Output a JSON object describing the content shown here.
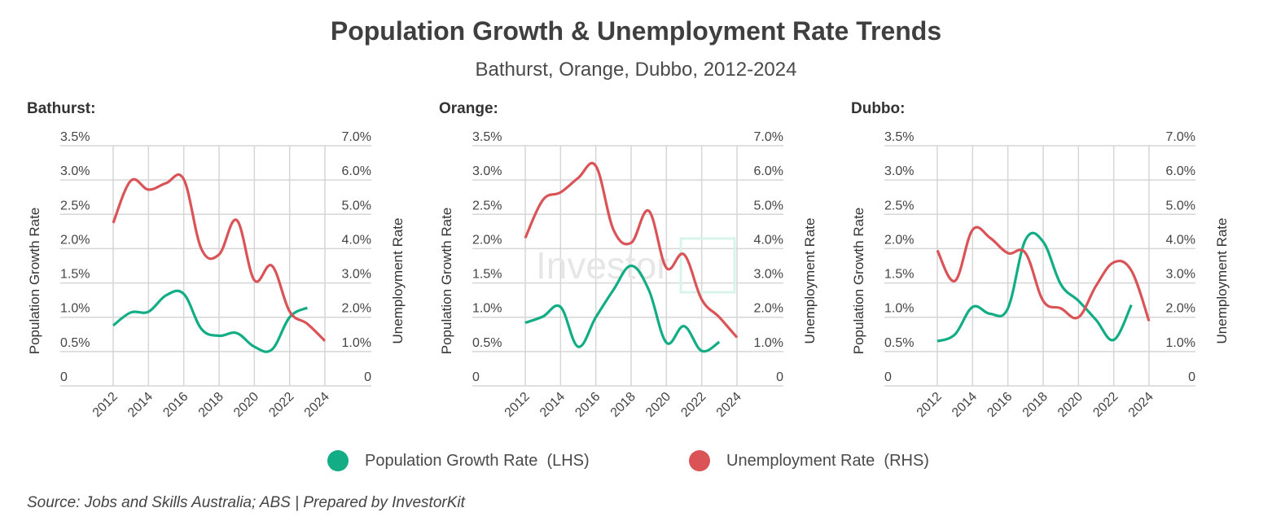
{
  "title": "Population Growth & Unemployment Rate Trends",
  "subtitle": "Bathurst, Orange, Dubbo, 2012-2024",
  "watermark": "InvestorKit",
  "legend": [
    {
      "label": "Population Growth Rate  (LHS)",
      "color": "#13ad85"
    },
    {
      "label": "Unemployment Rate  (RHS)",
      "color": "#d95357"
    }
  ],
  "source": "Source: Jobs and Skills Australia; ABS | Prepared by InvestorKit",
  "chart_data": [
    {
      "type": "line",
      "title": "Bathurst:",
      "ylabel": "Population Growth Rate",
      "y2label": "Unemployment Rate",
      "ylim": [
        0,
        3.5
      ],
      "y2lim": [
        0,
        7.0
      ],
      "yticks": [
        "0",
        "0.5%",
        "1.0%",
        "1.5%",
        "2.0%",
        "2.5%",
        "3.0%",
        "3.5%"
      ],
      "y2ticks": [
        "0",
        "1.0%",
        "2.0%",
        "3.0%",
        "4.0%",
        "5.0%",
        "6.0%",
        "7.0%"
      ],
      "xticks": [
        "2012",
        "2014",
        "2016",
        "2018",
        "2020",
        "2022",
        "2024"
      ],
      "grid": true,
      "series": [
        {
          "name": "Population Growth Rate  (LHS)",
          "axis": "left",
          "x": [
            2012,
            2013,
            2014,
            2015,
            2016,
            2017,
            2018,
            2019,
            2020,
            2021,
            2022,
            2023
          ],
          "values": [
            0.88,
            1.07,
            1.08,
            1.32,
            1.34,
            0.83,
            0.73,
            0.77,
            0.57,
            0.53,
            1.0,
            1.14
          ]
        },
        {
          "name": "Unemployment Rate  (RHS)",
          "axis": "right",
          "x": [
            2012,
            2013,
            2014,
            2015,
            2016,
            2017,
            2018,
            2019,
            2020,
            2021,
            2022,
            2023,
            2024
          ],
          "values": [
            4.75,
            5.98,
            5.72,
            5.91,
            6.02,
            3.99,
            3.83,
            4.83,
            3.08,
            3.5,
            2.17,
            1.81,
            1.31
          ]
        }
      ]
    },
    {
      "type": "line",
      "title": "Orange:",
      "ylabel": "Population Growth Rate",
      "y2label": "Unemployment Rate",
      "ylim": [
        0,
        3.5
      ],
      "y2lim": [
        0,
        7.0
      ],
      "yticks": [
        "0",
        "0.5%",
        "1.0%",
        "1.5%",
        "2.0%",
        "2.5%",
        "3.0%",
        "3.5%"
      ],
      "y2ticks": [
        "0",
        "1.0%",
        "2.0%",
        "3.0%",
        "4.0%",
        "5.0%",
        "6.0%",
        "7.0%"
      ],
      "xticks": [
        "2012",
        "2014",
        "2016",
        "2018",
        "2020",
        "2022",
        "2024"
      ],
      "grid": true,
      "series": [
        {
          "name": "Population Growth Rate  (LHS)",
          "axis": "left",
          "x": [
            2012,
            2013,
            2014,
            2015,
            2016,
            2017,
            2018,
            2019,
            2020,
            2021,
            2022,
            2023
          ],
          "values": [
            0.92,
            1.01,
            1.15,
            0.57,
            1.0,
            1.4,
            1.75,
            1.4,
            0.63,
            0.87,
            0.51,
            0.64
          ]
        },
        {
          "name": "Unemployment Rate  (RHS)",
          "axis": "right",
          "x": [
            2012,
            2013,
            2014,
            2015,
            2016,
            2017,
            2018,
            2019,
            2020,
            2021,
            2022,
            2023,
            2024
          ],
          "values": [
            4.31,
            5.42,
            5.64,
            6.06,
            6.41,
            4.55,
            4.17,
            5.1,
            3.44,
            3.83,
            2.52,
            2.0,
            1.41
          ]
        }
      ]
    },
    {
      "type": "line",
      "title": "Dubbo:",
      "ylabel": "Population Growth Rate",
      "y2label": "Unemployment Rate",
      "ylim": [
        0,
        3.5
      ],
      "y2lim": [
        0,
        7.0
      ],
      "yticks": [
        "0",
        "0.5%",
        "1.0%",
        "1.5%",
        "2.0%",
        "2.5%",
        "3.0%",
        "3.5%"
      ],
      "y2ticks": [
        "0",
        "1.0%",
        "2.0%",
        "3.0%",
        "4.0%",
        "5.0%",
        "6.0%",
        "7.0%"
      ],
      "xticks": [
        "2012",
        "2014",
        "2016",
        "2018",
        "2020",
        "2022",
        "2024"
      ],
      "grid": true,
      "series": [
        {
          "name": "Population Growth Rate  (LHS)",
          "axis": "left",
          "x": [
            2012,
            2013,
            2014,
            2015,
            2016,
            2017,
            2018,
            2019,
            2020,
            2021,
            2022,
            2023
          ],
          "values": [
            0.65,
            0.75,
            1.15,
            1.05,
            1.13,
            2.13,
            2.1,
            1.48,
            1.24,
            0.96,
            0.67,
            1.18
          ]
        },
        {
          "name": "Unemployment Rate  (RHS)",
          "axis": "right",
          "x": [
            2012,
            2013,
            2014,
            2015,
            2016,
            2017,
            2018,
            2019,
            2020,
            2021,
            2022,
            2023,
            2024
          ],
          "values": [
            3.95,
            3.06,
            4.55,
            4.31,
            3.87,
            3.87,
            2.48,
            2.26,
            2.0,
            2.92,
            3.6,
            3.36,
            1.89
          ]
        }
      ]
    }
  ]
}
